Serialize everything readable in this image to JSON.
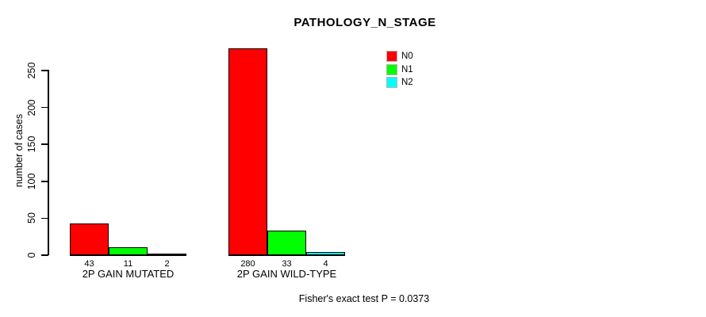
{
  "chart_data": {
    "type": "bar",
    "title": "PATHOLOGY_N_STAGE",
    "ylabel": "number of cases",
    "xlabel": "",
    "ylim": [
      0,
      282
    ],
    "yticks": [
      0,
      50,
      100,
      150,
      200,
      250
    ],
    "groups": [
      "2P GAIN MUTATED",
      "2P GAIN WILD-TYPE"
    ],
    "series": [
      {
        "name": "N0",
        "color": "#ff0000",
        "values": [
          43,
          280
        ]
      },
      {
        "name": "N1",
        "color": "#00ff00",
        "values": [
          11,
          33
        ]
      },
      {
        "name": "N2",
        "color": "#00ffff",
        "values": [
          2,
          4
        ]
      }
    ],
    "legend_position": "top-right",
    "grid": false,
    "background": "#ffffff",
    "annotation": "Fisher's exact test P = 0.0373"
  }
}
